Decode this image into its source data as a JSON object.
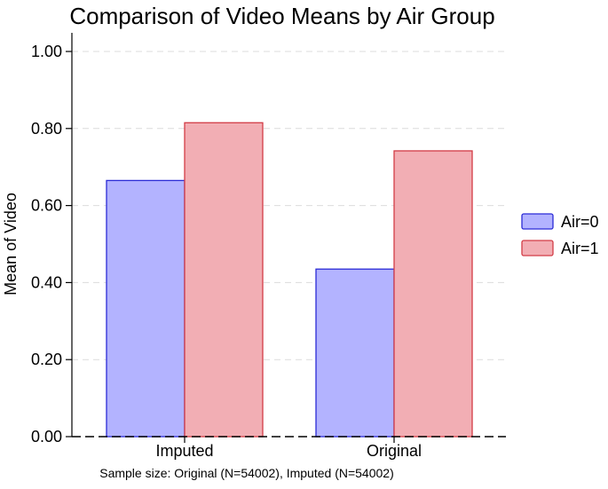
{
  "chart_data": {
    "type": "bar",
    "title": "Comparison of Video Means by Air Group",
    "xlabel": "",
    "ylabel": "Mean of Video",
    "categories": [
      "Imputed",
      "Original"
    ],
    "series": [
      {
        "name": "Air=0",
        "values": [
          0.665,
          0.435
        ],
        "fill": "#b3b3ff",
        "stroke": "#2b2bd6"
      },
      {
        "name": "Air=1",
        "values": [
          0.815,
          0.742
        ],
        "fill": "#f2aeb4",
        "stroke": "#d23c46"
      }
    ],
    "ylim": [
      0,
      1.0
    ],
    "yticks": [
      0.0,
      0.2,
      0.4,
      0.6,
      0.8,
      1.0
    ],
    "ytick_labels": [
      "0.00",
      "0.20",
      "0.40",
      "0.60",
      "0.80",
      "1.00"
    ],
    "grid": "horizontal dashed",
    "legend_position": "right",
    "footnote": "Sample size: Original (N=54002), Imputed (N=54002)"
  }
}
